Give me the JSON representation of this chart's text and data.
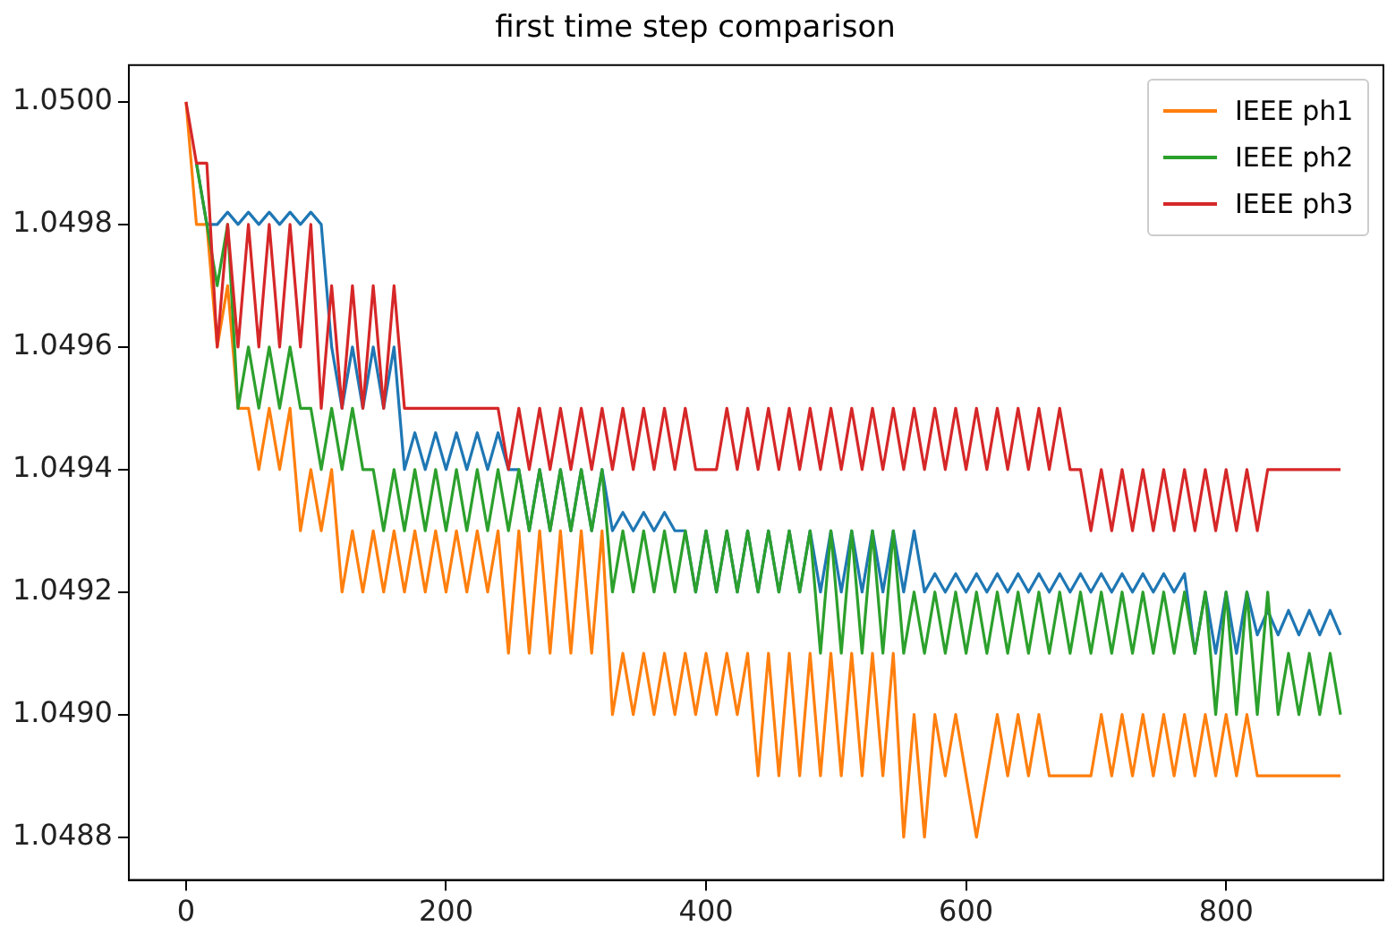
{
  "chart_data": {
    "type": "line",
    "title": "first time step comparison",
    "x": [
      0,
      8,
      16,
      24,
      32,
      40,
      48,
      56,
      64,
      72,
      80,
      88,
      96,
      104,
      112,
      120,
      128,
      136,
      144,
      152,
      160,
      168,
      176,
      184,
      192,
      200,
      208,
      216,
      224,
      232,
      240,
      248,
      256,
      264,
      272,
      280,
      288,
      296,
      304,
      312,
      320,
      328,
      336,
      344,
      352,
      360,
      368,
      376,
      384,
      392,
      400,
      408,
      416,
      424,
      432,
      440,
      448,
      456,
      464,
      472,
      480,
      488,
      496,
      504,
      512,
      520,
      528,
      536,
      544,
      552,
      560,
      568,
      576,
      584,
      592,
      600,
      608,
      616,
      624,
      632,
      640,
      648,
      656,
      664,
      672,
      680,
      688,
      696,
      704,
      712,
      720,
      728,
      736,
      744,
      752,
      760,
      768,
      776,
      784,
      792,
      800,
      808,
      816,
      824,
      832,
      840,
      848,
      856,
      864,
      872,
      880,
      888
    ],
    "series": [
      {
        "color": "#1f77b4",
        "values": [
          null,
          1.0499,
          1.0498,
          1.0498,
          1.04982,
          1.0498,
          1.04982,
          1.0498,
          1.04982,
          1.0498,
          1.04982,
          1.0498,
          1.04982,
          1.0498,
          1.0496,
          1.0495,
          1.0496,
          1.0495,
          1.0496,
          1.0495,
          1.0496,
          1.0494,
          1.04946,
          1.0494,
          1.04946,
          1.0494,
          1.04946,
          1.0494,
          1.04946,
          1.0494,
          1.04946,
          1.0494,
          1.0494,
          1.0493,
          1.0494,
          1.0493,
          1.0494,
          1.0493,
          1.0494,
          1.0493,
          1.0494,
          1.0493,
          1.04933,
          1.0493,
          1.04933,
          1.0493,
          1.04933,
          1.0493,
          1.0493,
          1.0492,
          1.0493,
          1.0492,
          1.0493,
          1.0492,
          1.0493,
          1.0492,
          1.0493,
          1.0492,
          1.0493,
          1.0492,
          1.0493,
          1.0492,
          1.0493,
          1.0492,
          1.0493,
          1.0492,
          1.0493,
          1.0492,
          1.0493,
          1.0492,
          1.0493,
          1.0492,
          1.04923,
          1.0492,
          1.04923,
          1.0492,
          1.04923,
          1.0492,
          1.04923,
          1.0492,
          1.04923,
          1.0492,
          1.04923,
          1.0492,
          1.04923,
          1.0492,
          1.04923,
          1.0492,
          1.04923,
          1.0492,
          1.04923,
          1.0492,
          1.04923,
          1.0492,
          1.04923,
          1.0492,
          1.04923,
          1.0491,
          1.0492,
          1.0491,
          1.0492,
          1.0491,
          1.0492,
          1.04913,
          1.04917,
          1.04913,
          1.04917,
          1.04913,
          1.04917,
          1.04913,
          1.04917,
          1.04913
        ]
      },
      {
        "name": "IEEE ph1",
        "color": "#ff7f0e",
        "values": [
          1.05,
          1.0498,
          1.0498,
          1.0496,
          1.0497,
          1.0495,
          1.0495,
          1.0494,
          1.0495,
          1.0494,
          1.0495,
          1.0493,
          1.0494,
          1.0493,
          1.0494,
          1.0492,
          1.0493,
          1.0492,
          1.0493,
          1.0492,
          1.0493,
          1.0492,
          1.0493,
          1.0492,
          1.0493,
          1.0492,
          1.0493,
          1.0492,
          1.0493,
          1.0492,
          1.0493,
          1.0491,
          1.0493,
          1.0491,
          1.0493,
          1.0491,
          1.0493,
          1.0491,
          1.0493,
          1.0491,
          1.0493,
          1.049,
          1.0491,
          1.049,
          1.0491,
          1.049,
          1.0491,
          1.049,
          1.0491,
          1.049,
          1.0491,
          1.049,
          1.0491,
          1.049,
          1.0491,
          1.0489,
          1.0491,
          1.0489,
          1.0491,
          1.0489,
          1.0491,
          1.0489,
          1.0491,
          1.0489,
          1.0491,
          1.0489,
          1.0491,
          1.0489,
          1.0491,
          1.0488,
          1.049,
          1.0488,
          1.049,
          1.0489,
          1.049,
          1.0489,
          1.0488,
          1.0489,
          1.049,
          1.0489,
          1.049,
          1.0489,
          1.049,
          1.0489,
          1.0489,
          1.0489,
          1.0489,
          1.0489,
          1.049,
          1.0489,
          1.049,
          1.0489,
          1.049,
          1.0489,
          1.049,
          1.0489,
          1.049,
          1.0489,
          1.049,
          1.0489,
          1.049,
          1.0489,
          1.049,
          1.0489,
          1.0489,
          1.0489,
          1.0489,
          1.0489,
          1.0489,
          1.0489,
          1.0489,
          1.0489
        ]
      },
      {
        "name": "IEEE ph2",
        "color": "#2ca02c",
        "values": [
          null,
          1.0499,
          1.0498,
          1.0497,
          1.0498,
          1.0495,
          1.0496,
          1.0495,
          1.0496,
          1.0495,
          1.0496,
          1.0495,
          1.0495,
          1.0494,
          1.0495,
          1.0494,
          1.0495,
          1.0494,
          1.0494,
          1.0493,
          1.0494,
          1.0493,
          1.0494,
          1.0493,
          1.0494,
          1.0493,
          1.0494,
          1.0493,
          1.0494,
          1.0493,
          1.0494,
          1.0493,
          1.0494,
          1.0493,
          1.0494,
          1.0493,
          1.0494,
          1.0493,
          1.0494,
          1.0493,
          1.0494,
          1.0492,
          1.0493,
          1.0492,
          1.0493,
          1.0492,
          1.0493,
          1.0492,
          1.0493,
          1.0492,
          1.0493,
          1.0492,
          1.0493,
          1.0492,
          1.0493,
          1.0492,
          1.0493,
          1.0492,
          1.0493,
          1.0492,
          1.0493,
          1.0491,
          1.0493,
          1.0491,
          1.0493,
          1.0491,
          1.0493,
          1.0491,
          1.0493,
          1.0491,
          1.0492,
          1.0491,
          1.0492,
          1.0491,
          1.0492,
          1.0491,
          1.0492,
          1.0491,
          1.0492,
          1.0491,
          1.0492,
          1.0491,
          1.0492,
          1.0491,
          1.0492,
          1.0491,
          1.0492,
          1.0491,
          1.0492,
          1.0491,
          1.0492,
          1.0491,
          1.0492,
          1.0491,
          1.0492,
          1.0491,
          1.0492,
          1.0491,
          1.0492,
          1.049,
          1.0492,
          1.049,
          1.0492,
          1.049,
          1.0492,
          1.049,
          1.0491,
          1.049,
          1.0491,
          1.049,
          1.0491,
          1.049
        ]
      },
      {
        "name": "IEEE ph3",
        "color": "#d62728",
        "values": [
          1.05,
          1.0499,
          1.0499,
          1.0496,
          1.0498,
          1.0496,
          1.0498,
          1.0496,
          1.0498,
          1.0496,
          1.0498,
          1.0496,
          1.0498,
          1.0495,
          1.0497,
          1.0495,
          1.0497,
          1.0495,
          1.0497,
          1.0495,
          1.0497,
          1.0495,
          1.0495,
          1.0495,
          1.0495,
          1.0495,
          1.0495,
          1.0495,
          1.0495,
          1.0495,
          1.0495,
          1.0494,
          1.0495,
          1.0494,
          1.0495,
          1.0494,
          1.0495,
          1.0494,
          1.0495,
          1.0494,
          1.0495,
          1.0494,
          1.0495,
          1.0494,
          1.0495,
          1.0494,
          1.0495,
          1.0494,
          1.0495,
          1.0494,
          1.0494,
          1.0494,
          1.0495,
          1.0494,
          1.0495,
          1.0494,
          1.0495,
          1.0494,
          1.0495,
          1.0494,
          1.0495,
          1.0494,
          1.0495,
          1.0494,
          1.0495,
          1.0494,
          1.0495,
          1.0494,
          1.0495,
          1.0494,
          1.0495,
          1.0494,
          1.0495,
          1.0494,
          1.0495,
          1.0494,
          1.0495,
          1.0494,
          1.0495,
          1.0494,
          1.0495,
          1.0494,
          1.0495,
          1.0494,
          1.0495,
          1.0494,
          1.0494,
          1.0493,
          1.0494,
          1.0493,
          1.0494,
          1.0493,
          1.0494,
          1.0493,
          1.0494,
          1.0493,
          1.0494,
          1.0493,
          1.0494,
          1.0493,
          1.0494,
          1.0493,
          1.0494,
          1.0493,
          1.0494,
          1.0494,
          1.0494,
          1.0494,
          1.0494,
          1.0494,
          1.0494,
          1.0494
        ]
      }
    ],
    "xlim": [
      -44,
      921
    ],
    "xticks": [
      0,
      200,
      400,
      600,
      800
    ],
    "ylim": [
      1.04873,
      1.05006
    ],
    "yticks": [
      1.0488,
      {
        "value": 1.049,
        "label": "1.0490"
      },
      1.0492,
      1.0494,
      1.0496,
      1.0498,
      {
        "value": 1.05,
        "label": "1.0500"
      }
    ],
    "grid": false,
    "legend": "top right",
    "marker": "none",
    "line_style": "solid"
  }
}
